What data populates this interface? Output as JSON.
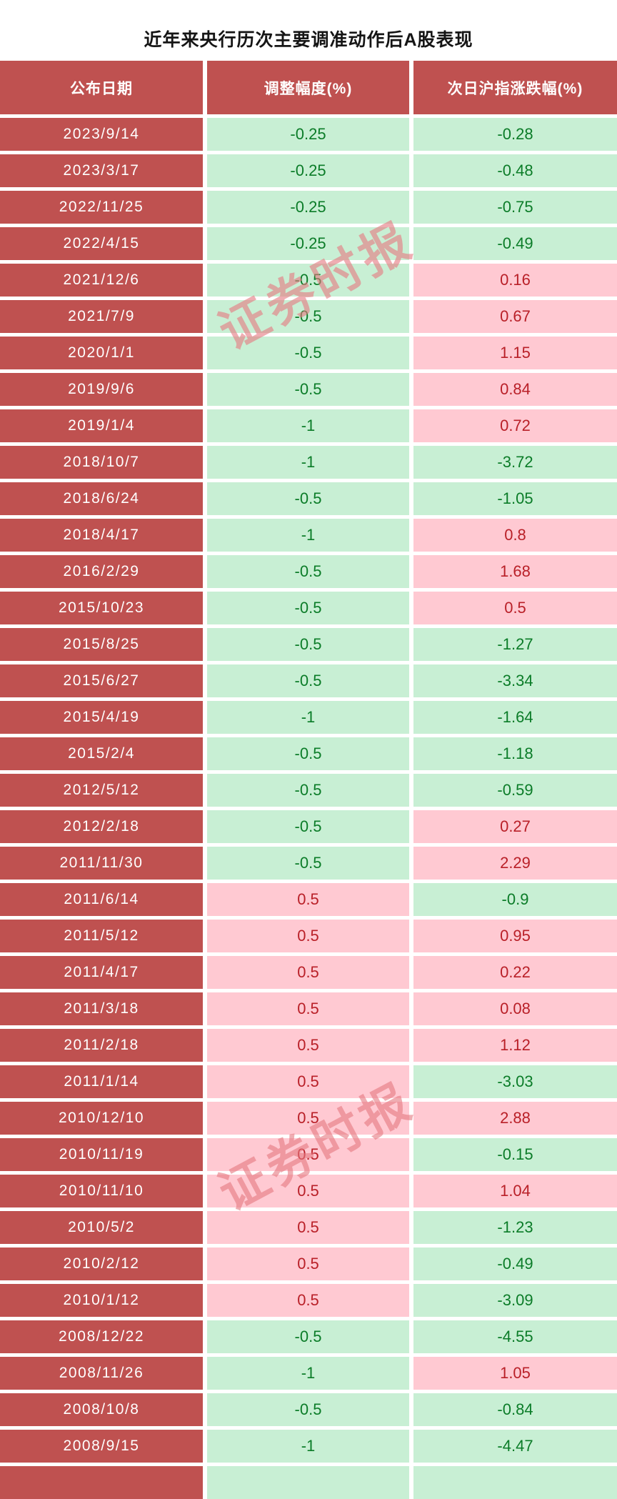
{
  "chart_data": {
    "type": "table",
    "title": "近年来央行历次主要调准动作后A股表现",
    "columns": [
      "公布日期",
      "调整幅度(%)",
      "次日沪指涨跌幅(%)"
    ],
    "rows": [
      [
        "2023/9/14",
        -0.25,
        -0.28
      ],
      [
        "2023/3/17",
        -0.25,
        -0.48
      ],
      [
        "2022/11/25",
        -0.25,
        -0.75
      ],
      [
        "2022/4/15",
        -0.25,
        -0.49
      ],
      [
        "2021/12/6",
        -0.5,
        0.16
      ],
      [
        "2021/7/9",
        -0.5,
        0.67
      ],
      [
        "2020/1/1",
        -0.5,
        1.15
      ],
      [
        "2019/9/6",
        -0.5,
        0.84
      ],
      [
        "2019/1/4",
        -1,
        0.72
      ],
      [
        "2018/10/7",
        -1,
        -3.72
      ],
      [
        "2018/6/24",
        -0.5,
        -1.05
      ],
      [
        "2018/4/17",
        -1,
        0.8
      ],
      [
        "2016/2/29",
        -0.5,
        1.68
      ],
      [
        "2015/10/23",
        -0.5,
        0.5
      ],
      [
        "2015/8/25",
        -0.5,
        -1.27
      ],
      [
        "2015/6/27",
        -0.5,
        -3.34
      ],
      [
        "2015/4/19",
        -1,
        -1.64
      ],
      [
        "2015/2/4",
        -0.5,
        -1.18
      ],
      [
        "2012/5/12",
        -0.5,
        -0.59
      ],
      [
        "2012/2/18",
        -0.5,
        0.27
      ],
      [
        "2011/11/30",
        -0.5,
        2.29
      ],
      [
        "2011/6/14",
        0.5,
        -0.9
      ],
      [
        "2011/5/12",
        0.5,
        0.95
      ],
      [
        "2011/4/17",
        0.5,
        0.22
      ],
      [
        "2011/3/18",
        0.5,
        0.08
      ],
      [
        "2011/2/18",
        0.5,
        1.12
      ],
      [
        "2011/1/14",
        0.5,
        -3.03
      ],
      [
        "2010/12/10",
        0.5,
        2.88
      ],
      [
        "2010/11/19",
        0.5,
        -0.15
      ],
      [
        "2010/11/10",
        0.5,
        1.04
      ],
      [
        "2010/5/2",
        0.5,
        -1.23
      ],
      [
        "2010/2/12",
        0.5,
        -0.49
      ],
      [
        "2010/1/12",
        0.5,
        -3.09
      ],
      [
        "2008/12/22",
        -0.5,
        -4.55
      ],
      [
        "2008/11/26",
        -1,
        1.05
      ],
      [
        "2008/10/8",
        -0.5,
        -0.84
      ],
      [
        "2008/9/15",
        -1,
        -4.47
      ]
    ],
    "layout_hints": {
      "value_color_rule": "negative values on light-green background with dark-green text, positive values on light-pink background with dark-red text",
      "partial_extra_row_clipped_at_bottom": true,
      "grid": "white gutters between solid-filled cells"
    }
  },
  "watermark": {
    "text": "证券时报"
  },
  "colors": {
    "header_bg": "#bf5150",
    "green_bg": "#c8efd4",
    "pink_bg": "#ffc9d2",
    "green_text": "#0b7c28",
    "red_text": "#b92028",
    "watermark": "#e67880",
    "title_text": "#151515"
  }
}
